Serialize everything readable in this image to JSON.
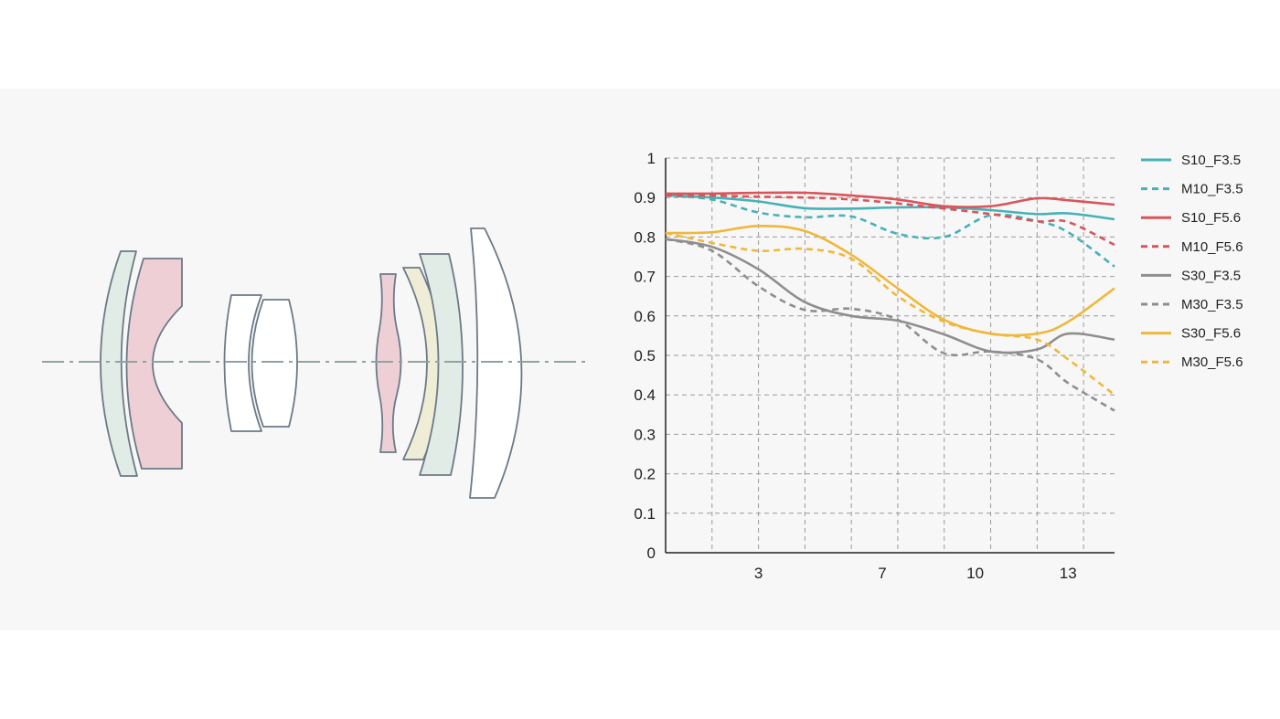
{
  "chart_data": {
    "type": "line",
    "xlabel": "",
    "ylabel": "",
    "title": "",
    "xlim": [
      0,
      14.5
    ],
    "ylim": [
      0,
      1
    ],
    "yticks": [
      "0",
      "0.1",
      "0.2",
      "0.3",
      "0.4",
      "0.5",
      "0.6",
      "0.7",
      "0.8",
      "0.9",
      "1"
    ],
    "ytick_values": [
      0,
      0.1,
      0.2,
      0.3,
      0.4,
      0.5,
      0.6,
      0.7,
      0.8,
      0.9,
      1
    ],
    "xticks": [
      "3",
      "7",
      "10",
      "13"
    ],
    "xtick_values": [
      3,
      7,
      10,
      13
    ],
    "vgrid_values": [
      1.5,
      3,
      4.5,
      6,
      7.5,
      9,
      10.5,
      12,
      13.5
    ],
    "grid": true,
    "legend_position": "right",
    "series": [
      {
        "name": "S10_F3.5",
        "color": "#45b2b8",
        "dash": false,
        "x": [
          0,
          1.5,
          3,
          4.5,
          6,
          7.5,
          9,
          10.5,
          12,
          13,
          14.5
        ],
        "y": [
          0.905,
          0.9,
          0.89,
          0.873,
          0.872,
          0.875,
          0.875,
          0.868,
          0.858,
          0.86,
          0.845
        ]
      },
      {
        "name": "M10_F3.5",
        "color": "#45b2b8",
        "dash": true,
        "x": [
          0,
          1.5,
          3,
          4.5,
          6,
          7.5,
          9,
          10.5,
          12,
          13,
          14.5
        ],
        "y": [
          0.905,
          0.895,
          0.862,
          0.85,
          0.852,
          0.808,
          0.8,
          0.855,
          0.84,
          0.812,
          0.725
        ]
      },
      {
        "name": "S10_F5.6",
        "color": "#d9555a",
        "dash": false,
        "x": [
          0,
          1.5,
          3,
          4.5,
          6,
          7.5,
          9,
          10.5,
          12,
          13,
          14.5
        ],
        "y": [
          0.91,
          0.91,
          0.912,
          0.912,
          0.905,
          0.895,
          0.878,
          0.878,
          0.898,
          0.893,
          0.882
        ]
      },
      {
        "name": "M10_F5.6",
        "color": "#d9555a",
        "dash": true,
        "x": [
          0,
          1.5,
          3,
          4.5,
          6,
          7.5,
          9,
          10.5,
          12,
          13,
          14.5
        ],
        "y": [
          0.905,
          0.905,
          0.902,
          0.9,
          0.895,
          0.885,
          0.872,
          0.858,
          0.84,
          0.838,
          0.78
        ]
      },
      {
        "name": "S30_F3.5",
        "color": "#8e8e8e",
        "dash": false,
        "x": [
          0,
          1.5,
          3,
          4.5,
          6,
          7.5,
          9,
          10.5,
          12,
          13,
          14.5
        ],
        "y": [
          0.795,
          0.775,
          0.718,
          0.635,
          0.6,
          0.588,
          0.553,
          0.51,
          0.515,
          0.555,
          0.54
        ]
      },
      {
        "name": "M30_F3.5",
        "color": "#8e8e8e",
        "dash": true,
        "x": [
          0,
          1.5,
          3,
          4.5,
          6,
          7.5,
          9,
          10.5,
          12,
          13,
          14.5
        ],
        "y": [
          0.795,
          0.765,
          0.675,
          0.615,
          0.618,
          0.59,
          0.505,
          0.51,
          0.49,
          0.43,
          0.36
        ]
      },
      {
        "name": "S30_F5.6",
        "color": "#f0b83a",
        "dash": false,
        "x": [
          0,
          1.5,
          3,
          4.5,
          6,
          7.5,
          9,
          10.5,
          12,
          13,
          14.5
        ],
        "y": [
          0.81,
          0.812,
          0.828,
          0.815,
          0.755,
          0.67,
          0.59,
          0.555,
          0.555,
          0.585,
          0.67
        ]
      },
      {
        "name": "M30_F5.6",
        "color": "#f0b83a",
        "dash": true,
        "x": [
          0,
          1.5,
          3,
          4.5,
          6,
          7.5,
          9,
          10.5,
          12,
          13,
          14.5
        ],
        "y": [
          0.81,
          0.785,
          0.765,
          0.77,
          0.745,
          0.65,
          0.585,
          0.555,
          0.54,
          0.49,
          0.4
        ]
      }
    ]
  }
}
